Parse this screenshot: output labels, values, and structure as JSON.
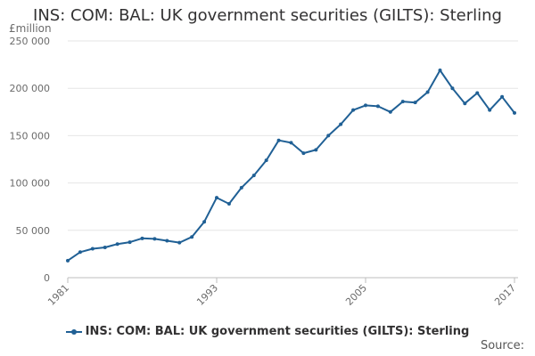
{
  "colors": {
    "series": "#206095",
    "grid": "#e6e6e6",
    "axis": "#bdbdbd",
    "text": "#323132"
  },
  "chart_data": {
    "type": "line",
    "title": "INS: COM: BAL: UK government securities (GILTS): Sterling",
    "ylabel": "£million",
    "xlabel": "",
    "ylim": [
      0,
      250000
    ],
    "yticks": [
      0,
      50000,
      100000,
      150000,
      200000,
      250000
    ],
    "ytick_labels": [
      "0",
      "50 000",
      "100 000",
      "150 000",
      "200 000",
      "250 000"
    ],
    "xlim": [
      1981,
      2017
    ],
    "xticks": [
      1981,
      1993,
      2005,
      2017
    ],
    "xtick_labels": [
      "1981",
      "1993",
      "2005",
      "2017"
    ],
    "grid": true,
    "legend_position": "bottom",
    "series": [
      {
        "name": "INS: COM: BAL: UK government securities (GILTS): Sterling",
        "x": [
          1981,
          1982,
          1983,
          1984,
          1985,
          1986,
          1987,
          1988,
          1989,
          1990,
          1991,
          1992,
          1993,
          1994,
          1995,
          1996,
          1997,
          1998,
          1999,
          2000,
          2001,
          2002,
          2003,
          2004,
          2005,
          2006,
          2007,
          2008,
          2009,
          2010,
          2011,
          2012,
          2013,
          2014,
          2015,
          2016,
          2017
        ],
        "values": [
          18000,
          27000,
          30500,
          32000,
          35500,
          37500,
          41500,
          41000,
          39000,
          37000,
          43000,
          59000,
          84500,
          78000,
          95000,
          108000,
          124000,
          145000,
          142500,
          131500,
          135000,
          150000,
          162000,
          177000,
          182000,
          181000,
          175000,
          186000,
          185000,
          196000,
          219000,
          200000,
          184000,
          195000,
          177000,
          191000,
          174000
        ]
      }
    ]
  },
  "legend": {
    "label": "INS: COM: BAL: UK government securities (GILTS): Sterling"
  },
  "source": {
    "label": "Source:"
  }
}
